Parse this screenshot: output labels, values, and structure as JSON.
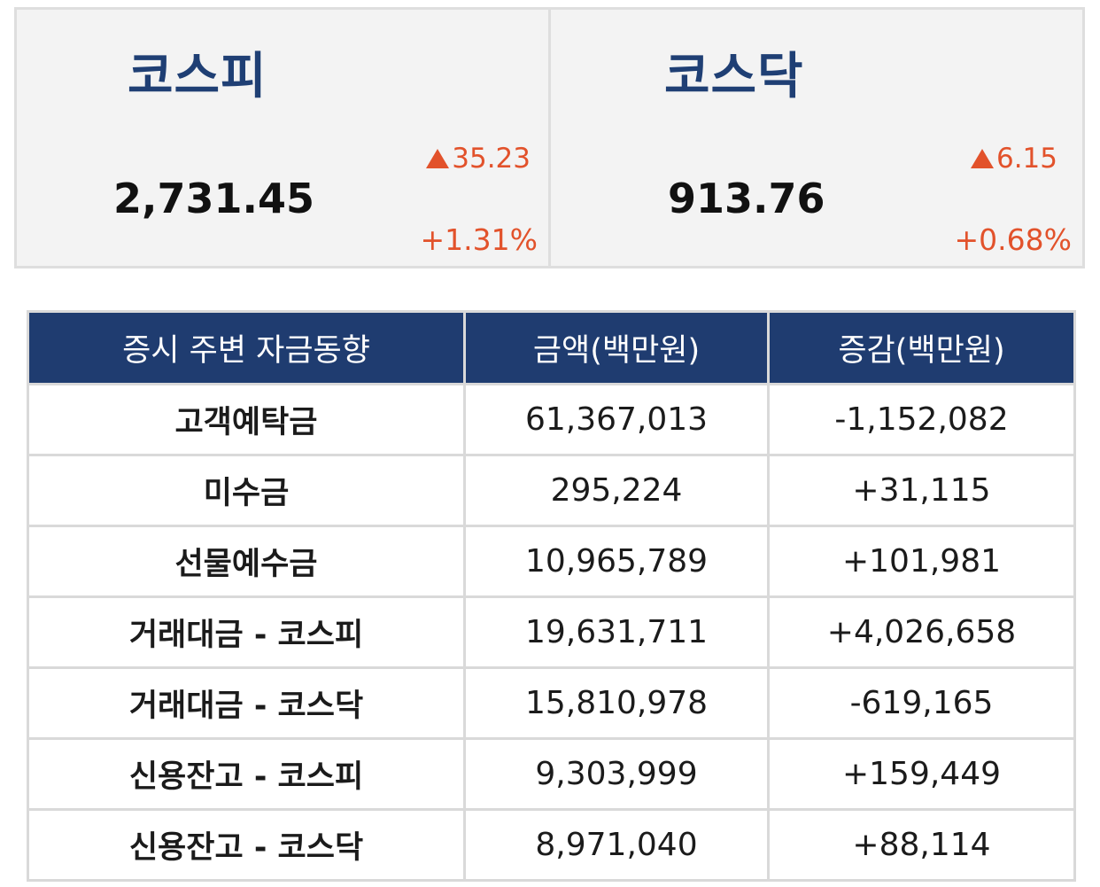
{
  "indices": {
    "kospi": {
      "name": "코스피",
      "value": "2,731.45",
      "change": "35.23",
      "pct": "+1.31%",
      "direction": "up"
    },
    "kosdaq": {
      "name": "코스닥",
      "value": "913.76",
      "change": "6.15",
      "pct": "+0.68%",
      "direction": "up"
    }
  },
  "table": {
    "headers": [
      "증시 주변 자금동향",
      "금액(백만원)",
      "증감(백만원)"
    ],
    "rows": [
      {
        "item": "고객예탁금",
        "amount": "61,367,013",
        "change": "-1,152,082",
        "sign": "neg"
      },
      {
        "item": "미수금",
        "amount": "295,224",
        "change": "+31,115",
        "sign": "pos"
      },
      {
        "item": "선물예수금",
        "amount": "10,965,789",
        "change": "+101,981",
        "sign": "pos"
      },
      {
        "item": "거래대금 - 코스피",
        "amount": "19,631,711",
        "change": "+4,026,658",
        "sign": "pos"
      },
      {
        "item": "거래대금 - 코스닥",
        "amount": "15,810,978",
        "change": "-619,165",
        "sign": "neg"
      },
      {
        "item": "신용잔고 - 코스피",
        "amount": "9,303,999",
        "change": "+159,449",
        "sign": "pos"
      },
      {
        "item": "신용잔고 - 코스닥",
        "amount": "8,971,040",
        "change": "+88,114",
        "sign": "pos"
      }
    ]
  },
  "colors": {
    "navy": "#1f3c70",
    "up": "#e2522b",
    "down": "#1a1adb",
    "panel_bg": "#f3f3f3"
  }
}
